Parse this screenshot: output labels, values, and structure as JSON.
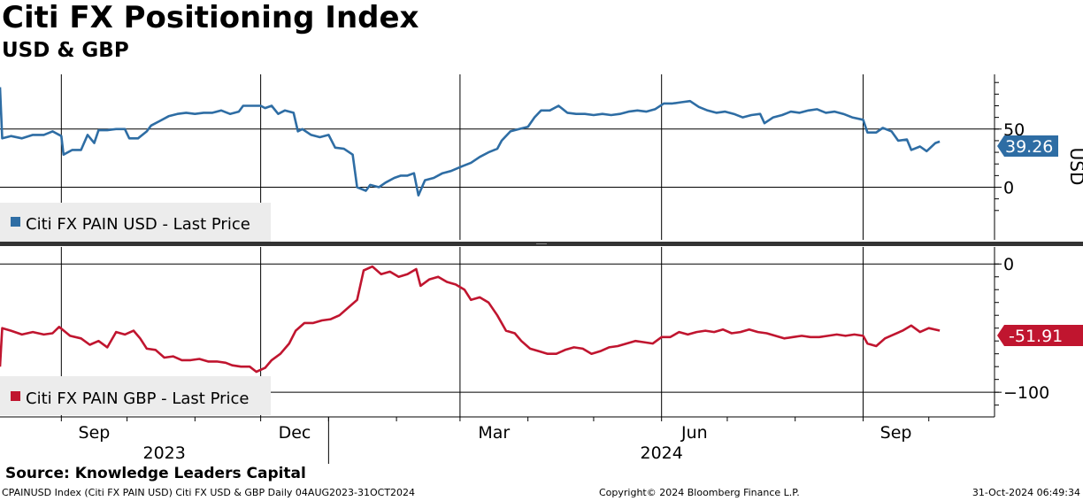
{
  "header": {
    "title": "Citi FX Positioning Index",
    "subtitle": "USD & GBP"
  },
  "source_text": "Source: Knowledge Leaders Capital",
  "footer": {
    "left": "CPAINUSD Index (Citi FX PAIN USD) Citi FX USD & GBP  Daily 04AUG2023-31OCT2024",
    "middle": "Copyright© 2024 Bloomberg Finance L.P.",
    "right": "31-Oct-2024 06:49:34"
  },
  "chart_data": [
    {
      "type": "line",
      "x_axis": {
        "start": "2023-08-04",
        "end": "2024-10-31",
        "month_labels": [
          "Sep",
          "Dec",
          "Mar",
          "Jun",
          "Sep"
        ],
        "year_labels": [
          "2023",
          "2024"
        ]
      },
      "y_axis": {
        "side": "right",
        "label": "USD",
        "ticks": [
          0,
          50
        ],
        "range": [
          -27,
          97
        ]
      },
      "grid": true,
      "legend": {
        "position": "bottom-left",
        "entries": [
          "Citi FX PAIN USD - Last Price"
        ]
      },
      "last_value_label": "39.26",
      "color": "#2e6da4",
      "series": [
        {
          "name": "Citi FX PAIN USD - Last Price",
          "points": [
            [
              "2023-08-04",
              86
            ],
            [
              "2023-08-05",
              42
            ],
            [
              "2023-08-09",
              44
            ],
            [
              "2023-08-14",
              42
            ],
            [
              "2023-08-19",
              45
            ],
            [
              "2023-08-24",
              45
            ],
            [
              "2023-08-28",
              48
            ],
            [
              "2023-09-01",
              44
            ],
            [
              "2023-09-02",
              28
            ],
            [
              "2023-09-06",
              32
            ],
            [
              "2023-09-10",
              32
            ],
            [
              "2023-09-13",
              45
            ],
            [
              "2023-09-16",
              38
            ],
            [
              "2023-09-18",
              49
            ],
            [
              "2023-09-22",
              49
            ],
            [
              "2023-09-26",
              50
            ],
            [
              "2023-09-30",
              50
            ],
            [
              "2023-10-02",
              42
            ],
            [
              "2023-10-06",
              42
            ],
            [
              "2023-10-10",
              48
            ],
            [
              "2023-10-12",
              53
            ],
            [
              "2023-10-16",
              57
            ],
            [
              "2023-10-20",
              61
            ],
            [
              "2023-10-24",
              63
            ],
            [
              "2023-10-28",
              64
            ],
            [
              "2023-11-01",
              63
            ],
            [
              "2023-11-05",
              64
            ],
            [
              "2023-11-09",
              64
            ],
            [
              "2023-11-13",
              66
            ],
            [
              "2023-11-17",
              63
            ],
            [
              "2023-11-21",
              65
            ],
            [
              "2023-11-23",
              70
            ],
            [
              "2023-11-27",
              70
            ],
            [
              "2023-12-01",
              70
            ],
            [
              "2023-12-03",
              68
            ],
            [
              "2023-12-06",
              70
            ],
            [
              "2023-12-09",
              63
            ],
            [
              "2023-12-12",
              66
            ],
            [
              "2023-12-16",
              64
            ],
            [
              "2023-12-18",
              48
            ],
            [
              "2023-12-20",
              50
            ],
            [
              "2023-12-24",
              45
            ],
            [
              "2023-12-28",
              43
            ],
            [
              "2024-01-01",
              45
            ],
            [
              "2024-01-04",
              34
            ],
            [
              "2024-01-08",
              33
            ],
            [
              "2024-01-12",
              28
            ],
            [
              "2024-01-14",
              0
            ],
            [
              "2024-01-18",
              -3
            ],
            [
              "2024-01-20",
              2
            ],
            [
              "2024-01-24",
              0
            ],
            [
              "2024-01-27",
              4
            ],
            [
              "2024-01-31",
              8
            ],
            [
              "2024-02-03",
              10
            ],
            [
              "2024-02-06",
              10
            ],
            [
              "2024-02-09",
              12
            ],
            [
              "2024-02-11",
              -7
            ],
            [
              "2024-02-14",
              6
            ],
            [
              "2024-02-18",
              8
            ],
            [
              "2024-02-22",
              12
            ],
            [
              "2024-02-26",
              14
            ],
            [
              "2024-03-02",
              18
            ],
            [
              "2024-03-06",
              21
            ],
            [
              "2024-03-10",
              26
            ],
            [
              "2024-03-14",
              30
            ],
            [
              "2024-03-18",
              33
            ],
            [
              "2024-03-20",
              40
            ],
            [
              "2024-03-24",
              48
            ],
            [
              "2024-03-28",
              50
            ],
            [
              "2024-04-01",
              52
            ],
            [
              "2024-04-04",
              60
            ],
            [
              "2024-04-07",
              66
            ],
            [
              "2024-04-11",
              66
            ],
            [
              "2024-04-15",
              70
            ],
            [
              "2024-04-19",
              64
            ],
            [
              "2024-04-23",
              63
            ],
            [
              "2024-04-27",
              63
            ],
            [
              "2024-05-01",
              62
            ],
            [
              "2024-05-05",
              63
            ],
            [
              "2024-05-09",
              62
            ],
            [
              "2024-05-13",
              63
            ],
            [
              "2024-05-17",
              65
            ],
            [
              "2024-05-21",
              66
            ],
            [
              "2024-05-25",
              65
            ],
            [
              "2024-05-29",
              67
            ],
            [
              "2024-06-02",
              72
            ],
            [
              "2024-06-06",
              72
            ],
            [
              "2024-06-10",
              73
            ],
            [
              "2024-06-14",
              74
            ],
            [
              "2024-06-18",
              69
            ],
            [
              "2024-06-22",
              66
            ],
            [
              "2024-06-26",
              64
            ],
            [
              "2024-06-30",
              65
            ],
            [
              "2024-07-04",
              63
            ],
            [
              "2024-07-08",
              60
            ],
            [
              "2024-07-12",
              62
            ],
            [
              "2024-07-16",
              63
            ],
            [
              "2024-07-18",
              55
            ],
            [
              "2024-07-22",
              60
            ],
            [
              "2024-07-26",
              62
            ],
            [
              "2024-07-30",
              65
            ],
            [
              "2024-08-03",
              64
            ],
            [
              "2024-08-07",
              66
            ],
            [
              "2024-08-11",
              67
            ],
            [
              "2024-08-15",
              64
            ],
            [
              "2024-08-19",
              65
            ],
            [
              "2024-08-23",
              63
            ],
            [
              "2024-08-27",
              60
            ],
            [
              "2024-09-01",
              58
            ],
            [
              "2024-09-03",
              47
            ],
            [
              "2024-09-07",
              47
            ],
            [
              "2024-09-10",
              51
            ],
            [
              "2024-09-14",
              48
            ],
            [
              "2024-09-17",
              40
            ],
            [
              "2024-09-21",
              41
            ],
            [
              "2024-09-23",
              32
            ],
            [
              "2024-09-27",
              35
            ],
            [
              "2024-09-30",
              31
            ],
            [
              "2024-10-04",
              38
            ],
            [
              "2024-10-06",
              39.26
            ]
          ]
        }
      ]
    },
    {
      "type": "line",
      "x_axis": {
        "start": "2023-08-04",
        "end": "2024-10-31",
        "month_labels": [
          "Sep",
          "Dec",
          "Mar",
          "Jun",
          "Sep"
        ],
        "year_labels": [
          "2023",
          "2024"
        ]
      },
      "y_axis": {
        "side": "right",
        "label": "",
        "ticks": [
          0,
          -100
        ],
        "range": [
          -113,
          5
        ]
      },
      "grid": true,
      "legend": {
        "position": "bottom-left",
        "entries": [
          "Citi FX PAIN GBP - Last Price"
        ]
      },
      "last_value_label": "-51.91",
      "color": "#c0152f",
      "series": [
        {
          "name": "Citi FX PAIN GBP - Last Price",
          "points": [
            [
              "2023-08-04",
              -80
            ],
            [
              "2023-08-05",
              -50
            ],
            [
              "2023-08-09",
              -52
            ],
            [
              "2023-08-14",
              -55
            ],
            [
              "2023-08-19",
              -53
            ],
            [
              "2023-08-24",
              -55
            ],
            [
              "2023-08-28",
              -54
            ],
            [
              "2023-08-31",
              -49
            ],
            [
              "2023-09-05",
              -56
            ],
            [
              "2023-09-10",
              -58
            ],
            [
              "2023-09-14",
              -63
            ],
            [
              "2023-09-18",
              -60
            ],
            [
              "2023-09-22",
              -65
            ],
            [
              "2023-09-26",
              -53
            ],
            [
              "2023-09-30",
              -55
            ],
            [
              "2023-10-04",
              -52
            ],
            [
              "2023-10-07",
              -58
            ],
            [
              "2023-10-10",
              -66
            ],
            [
              "2023-10-14",
              -67
            ],
            [
              "2023-10-18",
              -73
            ],
            [
              "2023-10-22",
              -72
            ],
            [
              "2023-10-26",
              -75
            ],
            [
              "2023-10-30",
              -75
            ],
            [
              "2023-11-03",
              -74
            ],
            [
              "2023-11-07",
              -76
            ],
            [
              "2023-11-11",
              -76
            ],
            [
              "2023-11-15",
              -77
            ],
            [
              "2023-11-18",
              -79
            ],
            [
              "2023-11-22",
              -80
            ],
            [
              "2023-11-26",
              -80
            ],
            [
              "2023-11-29",
              -84
            ],
            [
              "2023-12-03",
              -81
            ],
            [
              "2023-12-06",
              -75
            ],
            [
              "2023-12-10",
              -70
            ],
            [
              "2023-12-14",
              -62
            ],
            [
              "2023-12-17",
              -52
            ],
            [
              "2023-12-21",
              -46
            ],
            [
              "2023-12-25",
              -46
            ],
            [
              "2023-12-29",
              -44
            ],
            [
              "2024-01-02",
              -43
            ],
            [
              "2024-01-06",
              -40
            ],
            [
              "2024-01-10",
              -34
            ],
            [
              "2024-01-14",
              -28
            ],
            [
              "2024-01-17",
              -5
            ],
            [
              "2024-01-21",
              -2
            ],
            [
              "2024-01-25",
              -8
            ],
            [
              "2024-01-29",
              -6
            ],
            [
              "2024-02-02",
              -10
            ],
            [
              "2024-02-06",
              -8
            ],
            [
              "2024-02-10",
              -4
            ],
            [
              "2024-02-12",
              -17
            ],
            [
              "2024-02-16",
              -12
            ],
            [
              "2024-02-20",
              -10
            ],
            [
              "2024-02-24",
              -14
            ],
            [
              "2024-02-28",
              -16
            ],
            [
              "2024-03-03",
              -20
            ],
            [
              "2024-03-06",
              -28
            ],
            [
              "2024-03-10",
              -26
            ],
            [
              "2024-03-14",
              -30
            ],
            [
              "2024-03-18",
              -40
            ],
            [
              "2024-03-22",
              -52
            ],
            [
              "2024-03-26",
              -54
            ],
            [
              "2024-03-29",
              -60
            ],
            [
              "2024-04-02",
              -66
            ],
            [
              "2024-04-06",
              -68
            ],
            [
              "2024-04-10",
              -70
            ],
            [
              "2024-04-14",
              -70
            ],
            [
              "2024-04-18",
              -67
            ],
            [
              "2024-04-22",
              -65
            ],
            [
              "2024-04-26",
              -66
            ],
            [
              "2024-04-30",
              -70
            ],
            [
              "2024-05-04",
              -68
            ],
            [
              "2024-05-08",
              -65
            ],
            [
              "2024-05-12",
              -64
            ],
            [
              "2024-05-16",
              -62
            ],
            [
              "2024-05-20",
              -60
            ],
            [
              "2024-05-24",
              -61
            ],
            [
              "2024-05-28",
              -62
            ],
            [
              "2024-06-01",
              -57
            ],
            [
              "2024-06-05",
              -57
            ],
            [
              "2024-06-09",
              -53
            ],
            [
              "2024-06-13",
              -55
            ],
            [
              "2024-06-17",
              -53
            ],
            [
              "2024-06-21",
              -52
            ],
            [
              "2024-06-25",
              -53
            ],
            [
              "2024-06-29",
              -51
            ],
            [
              "2024-07-03",
              -54
            ],
            [
              "2024-07-07",
              -53
            ],
            [
              "2024-07-11",
              -51
            ],
            [
              "2024-07-15",
              -53
            ],
            [
              "2024-07-19",
              -54
            ],
            [
              "2024-07-23",
              -56
            ],
            [
              "2024-07-27",
              -58
            ],
            [
              "2024-07-31",
              -57
            ],
            [
              "2024-08-04",
              -56
            ],
            [
              "2024-08-08",
              -57
            ],
            [
              "2024-08-12",
              -57
            ],
            [
              "2024-08-16",
              -56
            ],
            [
              "2024-08-20",
              -55
            ],
            [
              "2024-08-24",
              -56
            ],
            [
              "2024-08-28",
              -55
            ],
            [
              "2024-09-01",
              -56
            ],
            [
              "2024-09-03",
              -62
            ],
            [
              "2024-09-07",
              -64
            ],
            [
              "2024-09-11",
              -58
            ],
            [
              "2024-09-15",
              -55
            ],
            [
              "2024-09-19",
              -52
            ],
            [
              "2024-09-23",
              -48
            ],
            [
              "2024-09-27",
              -53
            ],
            [
              "2024-10-01",
              -50
            ],
            [
              "2024-10-06",
              -51.91
            ]
          ]
        }
      ]
    }
  ]
}
